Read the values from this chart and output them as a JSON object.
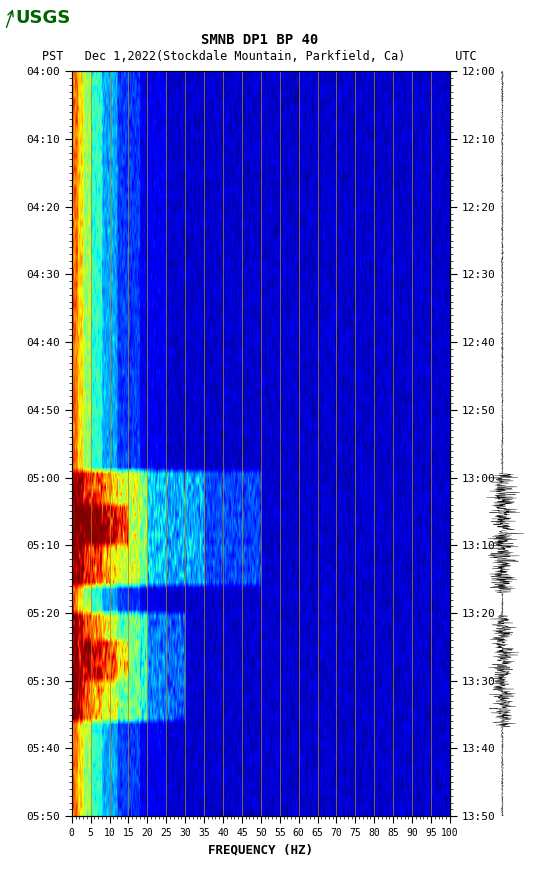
{
  "title_line1": "SMNB DP1 BP 40",
  "title_line2": "PST   Dec 1,2022(Stockdale Mountain, Parkfield, Ca)       UTC",
  "xlabel": "FREQUENCY (HZ)",
  "freq_min": 0,
  "freq_max": 100,
  "freq_ticks": [
    0,
    5,
    10,
    15,
    20,
    25,
    30,
    35,
    40,
    45,
    50,
    55,
    60,
    65,
    70,
    75,
    80,
    85,
    90,
    95,
    100
  ],
  "time_labels_left": [
    "04:00",
    "04:10",
    "04:20",
    "04:30",
    "04:40",
    "04:50",
    "05:00",
    "05:10",
    "05:20",
    "05:30",
    "05:40",
    "05:50"
  ],
  "time_labels_right": [
    "12:00",
    "12:10",
    "12:20",
    "12:30",
    "12:40",
    "12:50",
    "13:00",
    "13:10",
    "13:20",
    "13:30",
    "13:40",
    "13:50"
  ],
  "vertical_lines_freq": [
    5,
    10,
    15,
    20,
    25,
    30,
    35,
    40,
    45,
    50,
    55,
    60,
    65,
    70,
    75,
    80,
    85,
    90,
    95
  ],
  "fig_width": 5.52,
  "fig_height": 8.92,
  "dpi": 100,
  "usgs_logo_color": "#006400",
  "title_fontsize": 10,
  "label_fontsize": 9,
  "tick_fontsize": 8,
  "n_time": 110,
  "n_freq": 500,
  "seed": 42
}
